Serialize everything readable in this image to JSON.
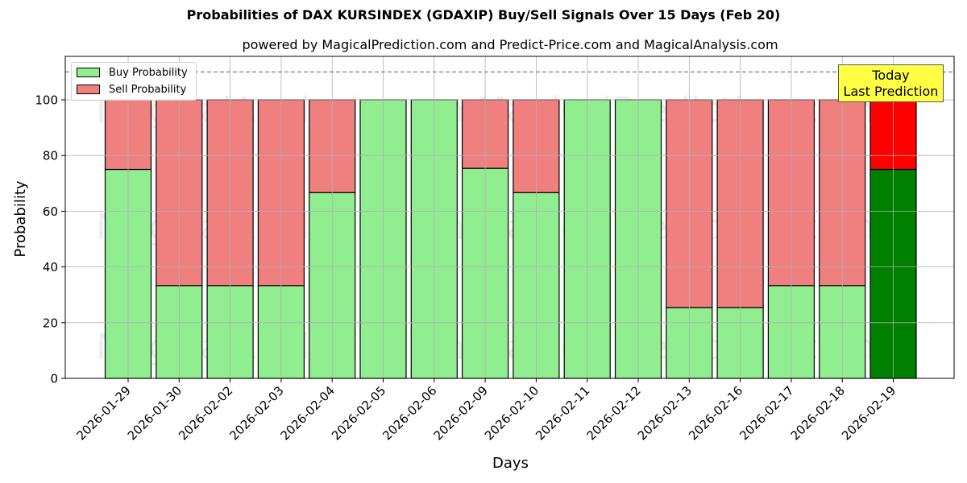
{
  "header": {
    "title": "Probabilities of DAX KURSINDEX (GDAXIP) Buy/Sell Signals Over 15 Days (Feb 20)",
    "subtitle": "powered by MagicalPrediction.com and Predict-Price.com and MagicalAnalysis.com"
  },
  "legend": {
    "buy_label": "Buy Probability",
    "sell_label": "Sell Probability"
  },
  "annotation": {
    "line1": "Today",
    "line2": "Last Prediction"
  },
  "watermarks": [
    "MagicalAnalysis.com",
    "MagicalPrediction.com"
  ],
  "colors": {
    "buy": "#90ee90",
    "sell": "#f08080",
    "today_buy": "#008000",
    "today_sell": "#ff0000",
    "annotation_bg": "#ffff44"
  },
  "chart_data": {
    "type": "bar",
    "stacked": true,
    "title": "Probabilities of DAX KURSINDEX (GDAXIP) Buy/Sell Signals Over 15 Days (Feb 20)",
    "subtitle": "powered by MagicalPrediction.com and Predict-Price.com and MagicalAnalysis.com",
    "xlabel": "Days",
    "ylabel": "Probability",
    "ylim": [
      0,
      115
    ],
    "yticks": [
      0,
      20,
      40,
      60,
      80,
      100
    ],
    "grid": true,
    "legend_position": "upper left",
    "reference_line": {
      "y": 110,
      "style": "dashed"
    },
    "categories": [
      "2026-01-29",
      "2026-01-30",
      "2026-02-02",
      "2026-02-03",
      "2026-02-04",
      "2026-02-05",
      "2026-02-06",
      "2026-02-09",
      "2026-02-10",
      "2026-02-11",
      "2026-02-12",
      "2026-02-13",
      "2026-02-16",
      "2026-02-17",
      "2026-02-18",
      "2026-02-19"
    ],
    "series": [
      {
        "name": "Buy Probability",
        "values": [
          75,
          33.3,
          33.3,
          33.3,
          66.7,
          100,
          100,
          75.4,
          66.7,
          100,
          100,
          25.4,
          25.4,
          33.3,
          33.3,
          75
        ]
      },
      {
        "name": "Sell Probability",
        "values": [
          25,
          66.7,
          66.7,
          66.7,
          33.3,
          0,
          0,
          24.6,
          33.3,
          0,
          0,
          74.6,
          74.6,
          66.7,
          66.7,
          25
        ]
      }
    ],
    "highlight": {
      "category": "2026-02-19",
      "label": "Today\nLast Prediction"
    }
  }
}
